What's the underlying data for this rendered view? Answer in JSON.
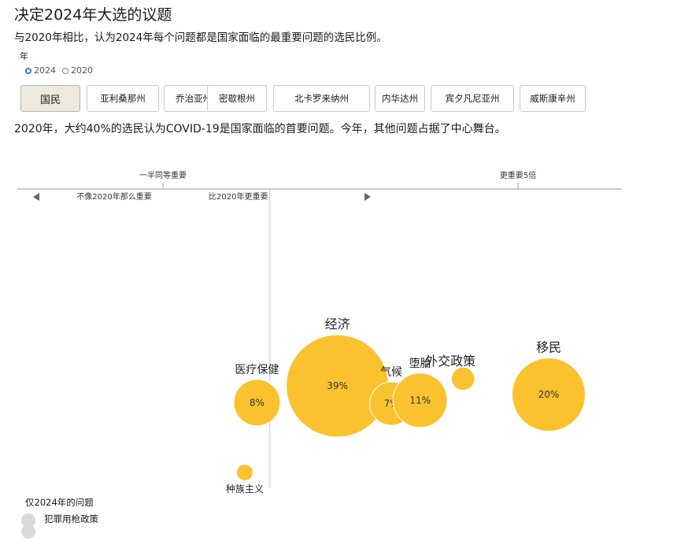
{
  "header": {
    "title": "决定2024年大选的议题",
    "subtitle": "与2020年相比，认为2024年每个问题都是国家面临的最重要问题的选民比例。"
  },
  "year_selector": {
    "label": "年",
    "options": [
      "2024",
      "2020"
    ],
    "selected": "2024"
  },
  "tabs": [
    "国民",
    "亚利桑那州",
    "乔治亚州",
    "密歇根州",
    "北卡罗来纳州",
    "内华达州",
    "宾夕凡尼亚州",
    "威斯康辛州"
  ],
  "active_tab": "国民",
  "lead_text": "2020年，大约40%的选民认为COVID-19是国家面临的首要问题。今年，其他问题占据了中心舞台。",
  "chart_data": {
    "type": "scatter",
    "color": "#f9c22e",
    "x_scale": "log",
    "x_ticks": [
      {
        "value": 0.5,
        "label": "一半同等重要"
      },
      {
        "value": 5,
        "label": "更重要5倍"
      }
    ],
    "reference_x": 1,
    "annotations": {
      "left": "不像2020年那么重要",
      "right": "比2020年更重要"
    },
    "series": [
      {
        "label": "经济",
        "share_2024": 39,
        "value_label": "39%",
        "ratio": 1.55
      },
      {
        "label": "医疗保健",
        "share_2024": 8,
        "value_label": "8%",
        "ratio": 0.92
      },
      {
        "label": "气候",
        "share_2024": 7,
        "value_label": "7%",
        "ratio": 2.2
      },
      {
        "label": "堕胎",
        "share_2024": 11,
        "value_label": "11%",
        "ratio": 2.65
      },
      {
        "label": "外交政策",
        "share_2024": 2,
        "value_label": "",
        "ratio": 3.5
      },
      {
        "label": "移民",
        "share_2024": 20,
        "value_label": "20%",
        "ratio": 6.1
      },
      {
        "label": "种族主义",
        "share_2024": 1,
        "value_label": "",
        "ratio": 0.85
      }
    ],
    "legend": {
      "title": "仅2024年的问题",
      "items": [
        "犯罪用枪政策"
      ]
    }
  }
}
